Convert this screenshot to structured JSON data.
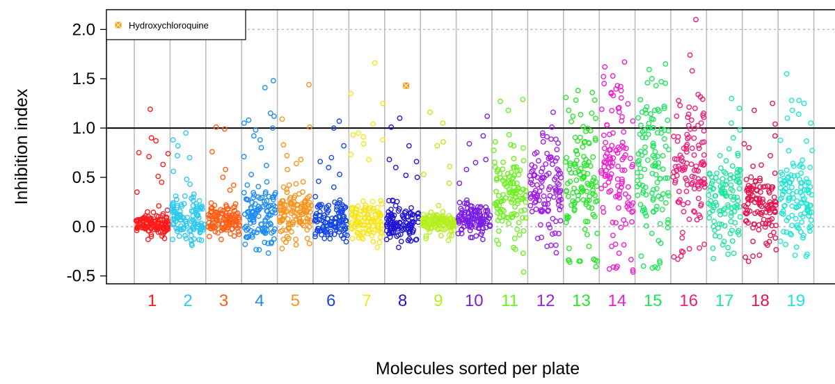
{
  "chart_data": {
    "type": "scatter",
    "title": "",
    "xlabel": "Molecules sorted per plate",
    "ylabel": "Inhibition index",
    "ylim": [
      -0.58,
      2.2
    ],
    "yticks": [
      "-0.5",
      "0.0",
      "0.5",
      "1.0",
      "1.5",
      "2.0"
    ],
    "ytick_values": [
      -0.5,
      0.0,
      0.5,
      1.0,
      1.5,
      2.0
    ],
    "reference_lines": {
      "solid": 1.0,
      "dotted": [
        0.0,
        2.0
      ]
    },
    "legend": {
      "position": "top-left",
      "entries": [
        {
          "label": "Hydroxychloroquine",
          "marker": "boxed-x",
          "color": "#f39c12"
        }
      ]
    },
    "highlight": {
      "name": "Hydroxychloroquine",
      "plate": "8",
      "value": 1.43,
      "color": "#f39c12"
    },
    "plates": [
      {
        "label": "1",
        "color": "#ff1a1a",
        "median": 0.03,
        "spread": 0.05,
        "outliers": [
          1.19,
          0.87,
          0.75,
          0.74,
          0.9,
          0.71,
          0.63,
          0.51,
          0.45,
          0.35,
          0.21,
          -0.12,
          -0.13,
          -0.1,
          -0.08
        ],
        "n": 110,
        "seed": 11
      },
      {
        "label": "2",
        "color": "#2ec8f0",
        "median": 0.08,
        "spread": 0.1,
        "outliers": [
          0.95,
          0.88,
          0.82,
          0.72,
          0.7,
          0.56,
          0.48,
          0.43,
          -0.14,
          -0.13,
          -0.12
        ],
        "n": 110,
        "seed": 23
      },
      {
        "label": "3",
        "color": "#ff5e14",
        "median": 0.07,
        "spread": 0.07,
        "outliers": [
          1.01,
          0.99,
          0.76,
          0.58,
          0.5,
          0.42,
          0.37,
          -0.13,
          -0.1
        ],
        "n": 110,
        "seed": 37
      },
      {
        "label": "4",
        "color": "#1e8cf5",
        "median": 0.14,
        "spread": 0.16,
        "outliers": [
          1.48,
          1.41,
          1.15,
          1.12,
          1.08,
          1.05,
          1.0,
          0.98,
          0.92,
          0.88,
          0.8,
          0.71,
          0.62,
          -0.18,
          -0.17,
          -0.17,
          -0.16
        ],
        "n": 110,
        "seed": 41
      },
      {
        "label": "5",
        "color": "#f7941d",
        "median": 0.15,
        "spread": 0.14,
        "outliers": [
          1.44,
          1.09,
          1.01,
          0.83,
          0.72,
          0.68,
          0.64,
          0.58,
          0.4,
          -0.13,
          -0.12,
          -0.12
        ],
        "n": 110,
        "seed": 53
      },
      {
        "label": "6",
        "color": "#1446e6",
        "median": 0.05,
        "spread": 0.1,
        "outliers": [
          1.07,
          1.0,
          0.82,
          0.7,
          0.66,
          0.6,
          0.53,
          0.46,
          0.4,
          -0.1,
          -0.09
        ],
        "n": 110,
        "seed": 67
      },
      {
        "label": "7",
        "color": "#f7e51a",
        "median": 0.07,
        "spread": 0.09,
        "outliers": [
          1.66,
          1.35,
          1.25,
          1.04,
          0.95,
          0.93,
          0.91,
          0.88,
          0.84,
          0.73,
          0.68,
          -0.12,
          -0.11
        ],
        "n": 110,
        "seed": 79
      },
      {
        "label": "8",
        "color": "#2214d6",
        "median": 0.04,
        "spread": 0.09,
        "outliers": [
          1.1,
          1.01,
          0.82,
          0.68,
          0.66,
          0.6,
          0.52,
          0.5,
          -0.14,
          -0.13
        ],
        "n": 110,
        "seed": 83
      },
      {
        "label": "9",
        "color": "#b4f01e",
        "median": 0.03,
        "spread": 0.06,
        "outliers": [
          1.16,
          1.05,
          0.86,
          0.82,
          0.61,
          0.53,
          0.44,
          -0.14,
          -0.12
        ],
        "n": 110,
        "seed": 97
      },
      {
        "label": "10",
        "color": "#7a1ee6",
        "median": 0.08,
        "spread": 0.08,
        "outliers": [
          1.12,
          0.92,
          0.84,
          0.68,
          0.65,
          0.58,
          0.44,
          -0.13,
          -0.11
        ],
        "n": 110,
        "seed": 101
      },
      {
        "label": "11",
        "color": "#6cf01e",
        "median": 0.3,
        "spread": 0.22,
        "outliers": [
          1.29,
          1.27,
          1.18,
          0.86,
          0.82,
          -0.27,
          -0.23,
          -0.12
        ],
        "n": 110,
        "seed": 113
      },
      {
        "label": "12",
        "color": "#a01ee6",
        "median": 0.38,
        "spread": 0.24,
        "outliers": [
          1.16,
          1.01,
          0.95,
          0.86,
          -0.2,
          -0.19,
          -0.07
        ],
        "n": 110,
        "seed": 127
      },
      {
        "label": "13",
        "color": "#28e628",
        "median": 0.48,
        "spread": 0.34,
        "outliers": [
          1.38,
          1.36,
          1.18,
          1.15,
          1.12,
          -0.33,
          -0.34,
          -0.35,
          -0.34,
          -0.35,
          -0.34,
          -0.35,
          -0.2
        ],
        "n": 110,
        "seed": 131
      },
      {
        "label": "14",
        "color": "#ee1ecc",
        "median": 0.6,
        "spread": 0.36,
        "outliers": [
          1.67,
          1.62,
          1.43,
          1.42,
          1.38,
          1.35,
          1.2,
          -0.41,
          -0.42,
          -0.44,
          -0.43,
          -0.2
        ],
        "n": 110,
        "seed": 139
      },
      {
        "label": "15",
        "color": "#1ee65a",
        "median": 0.55,
        "spread": 0.4,
        "outliers": [
          1.65,
          1.5,
          1.47,
          1.43,
          1.22,
          1.2,
          1.18,
          1.15,
          -0.42,
          -0.42,
          -0.4,
          -0.35,
          -0.3
        ],
        "n": 110,
        "seed": 149
      },
      {
        "label": "16",
        "color": "#ee1e78",
        "median": 0.6,
        "spread": 0.33,
        "outliers": [
          2.1,
          1.74,
          1.58,
          1.34,
          1.2,
          1.15,
          -0.33,
          -0.3,
          -0.25,
          -0.18
        ],
        "n": 110,
        "seed": 151
      },
      {
        "label": "17",
        "color": "#1ee69a",
        "median": 0.3,
        "spread": 0.22,
        "outliers": [
          1.3,
          1.2,
          1.05,
          0.98,
          0.9,
          -0.28,
          -0.27,
          -0.22
        ],
        "n": 110,
        "seed": 163
      },
      {
        "label": "18",
        "color": "#e6144e",
        "median": 0.22,
        "spread": 0.17,
        "outliers": [
          1.25,
          1.18,
          1.04,
          0.92,
          0.84,
          0.8,
          0.72,
          -0.31,
          -0.3,
          -0.29,
          -0.17
        ],
        "n": 110,
        "seed": 173
      },
      {
        "label": "19",
        "color": "#1ee6d2",
        "median": 0.25,
        "spread": 0.22,
        "outliers": [
          1.55,
          1.28,
          1.28,
          1.25,
          1.18,
          1.14,
          1.1,
          1.05,
          -0.3,
          -0.29,
          -0.28,
          -0.07
        ],
        "n": 110,
        "seed": 181
      }
    ]
  }
}
